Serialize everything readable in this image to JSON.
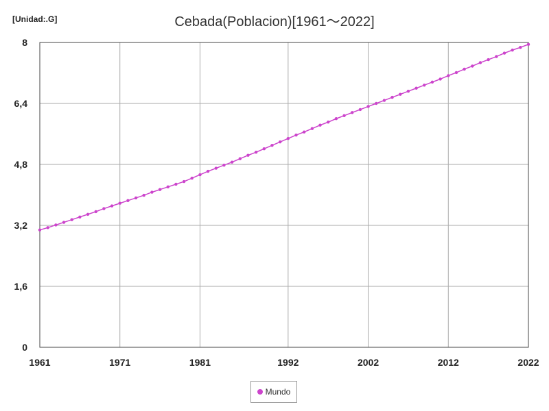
{
  "unit_label": "[Unidad:.G]",
  "chart_data": {
    "type": "line",
    "title": "Cebada(Poblacion)[1961～2022]",
    "xlabel": "",
    "ylabel": "",
    "x_range": [
      1961,
      2022
    ],
    "x_ticks": [
      "1961",
      "1971",
      "1981",
      "1992",
      "2002",
      "2012",
      "2022"
    ],
    "x_tick_values": [
      1961,
      1971,
      1981,
      1992,
      2002,
      2012,
      2022
    ],
    "ylim": [
      0,
      8
    ],
    "y_ticks": [
      "0",
      "1,6",
      "3,2",
      "4,8",
      "6,4",
      "8"
    ],
    "y_tick_values": [
      0,
      1.6,
      3.2,
      4.8,
      6.4,
      8
    ],
    "grid": true,
    "legend_position": "bottom-center",
    "series": [
      {
        "name": "Mundo",
        "color": "#cc44cc",
        "x": [
          1961,
          1962,
          1963,
          1964,
          1965,
          1966,
          1967,
          1968,
          1969,
          1970,
          1971,
          1972,
          1973,
          1974,
          1975,
          1976,
          1977,
          1978,
          1979,
          1980,
          1981,
          1982,
          1983,
          1984,
          1985,
          1986,
          1987,
          1988,
          1989,
          1990,
          1991,
          1992,
          1993,
          1994,
          1995,
          1996,
          1997,
          1998,
          1999,
          2000,
          2001,
          2002,
          2003,
          2004,
          2005,
          2006,
          2007,
          2008,
          2009,
          2010,
          2011,
          2012,
          2013,
          2014,
          2015,
          2016,
          2017,
          2018,
          2019,
          2020,
          2021,
          2022
        ],
        "values": [
          3.08,
          3.14,
          3.21,
          3.28,
          3.35,
          3.42,
          3.49,
          3.56,
          3.64,
          3.71,
          3.78,
          3.85,
          3.92,
          3.99,
          4.07,
          4.14,
          4.21,
          4.28,
          4.35,
          4.44,
          4.53,
          4.62,
          4.7,
          4.78,
          4.86,
          4.95,
          5.04,
          5.12,
          5.21,
          5.3,
          5.39,
          5.48,
          5.57,
          5.65,
          5.74,
          5.83,
          5.91,
          6.0,
          6.08,
          6.16,
          6.24,
          6.32,
          6.4,
          6.48,
          6.56,
          6.64,
          6.72,
          6.8,
          6.88,
          6.96,
          7.04,
          7.13,
          7.21,
          7.3,
          7.38,
          7.47,
          7.55,
          7.63,
          7.72,
          7.8,
          7.87,
          7.95
        ]
      }
    ]
  }
}
